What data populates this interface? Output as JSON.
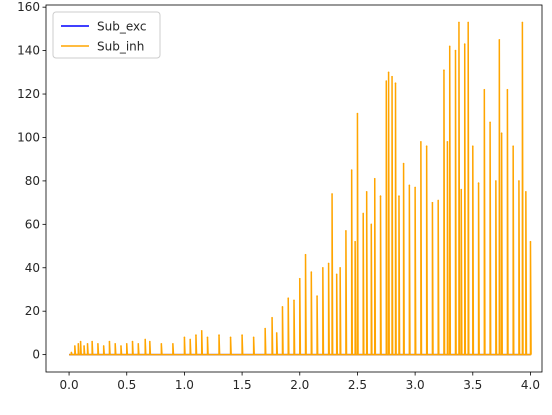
{
  "chart_data": {
    "type": "line",
    "title": "",
    "xlabel": "",
    "ylabel": "",
    "xlim": [
      -0.2,
      4.1
    ],
    "ylim": [
      -8,
      161
    ],
    "x_ticks": [
      0.0,
      0.5,
      1.0,
      1.5,
      2.0,
      2.5,
      3.0,
      3.5,
      4.0
    ],
    "x_tick_labels": [
      "0.0",
      "0.5",
      "1.0",
      "1.5",
      "2.0",
      "2.5",
      "3.0",
      "3.5",
      "4.0"
    ],
    "y_ticks": [
      0,
      20,
      40,
      60,
      80,
      100,
      120,
      140,
      160
    ],
    "y_tick_labels": [
      "0",
      "20",
      "40",
      "60",
      "80",
      "100",
      "120",
      "140",
      "160"
    ],
    "grid": false,
    "legend_position": "top-left",
    "series": [
      {
        "name": "Sub_exc",
        "color": "#0000ff",
        "x": [
          0.0,
          0.5,
          1.0,
          1.5,
          2.0,
          2.5,
          3.0,
          3.5,
          4.0
        ],
        "y": [
          0,
          0,
          0,
          0,
          0,
          0,
          0,
          0,
          0
        ]
      },
      {
        "name": "Sub_inh",
        "color": "#ffa500",
        "x": [
          0.02,
          0.05,
          0.08,
          0.1,
          0.13,
          0.16,
          0.2,
          0.25,
          0.3,
          0.35,
          0.4,
          0.45,
          0.5,
          0.55,
          0.6,
          0.66,
          0.7,
          0.8,
          0.9,
          1.0,
          1.05,
          1.1,
          1.15,
          1.2,
          1.3,
          1.4,
          1.5,
          1.6,
          1.7,
          1.76,
          1.8,
          1.85,
          1.9,
          1.95,
          2.0,
          2.05,
          2.1,
          2.15,
          2.2,
          2.25,
          2.28,
          2.32,
          2.35,
          2.4,
          2.45,
          2.48,
          2.5,
          2.55,
          2.58,
          2.62,
          2.65,
          2.7,
          2.75,
          2.77,
          2.8,
          2.83,
          2.86,
          2.9,
          2.95,
          3.0,
          3.05,
          3.1,
          3.15,
          3.2,
          3.25,
          3.28,
          3.3,
          3.35,
          3.38,
          3.4,
          3.43,
          3.46,
          3.5,
          3.55,
          3.6,
          3.65,
          3.7,
          3.73,
          3.75,
          3.8,
          3.85,
          3.9,
          3.93,
          3.96,
          4.0
        ],
        "y": [
          1,
          4,
          5,
          6,
          4,
          5,
          6,
          5,
          4,
          6,
          5,
          4,
          5,
          6,
          5,
          7,
          6,
          5,
          5,
          8,
          7,
          9,
          11,
          8,
          9,
          8,
          9,
          8,
          12,
          17,
          10,
          22,
          26,
          25,
          35,
          46,
          38,
          27,
          40,
          42,
          74,
          37,
          40,
          57,
          85,
          52,
          111,
          65,
          75,
          60,
          81,
          73,
          126,
          130,
          128,
          125,
          73,
          88,
          78,
          77,
          98,
          96,
          70,
          71,
          131,
          98,
          142,
          140,
          153,
          76,
          143,
          153,
          96,
          79,
          122,
          107,
          80,
          145,
          102,
          122,
          96,
          80,
          153,
          75,
          52
        ]
      }
    ]
  }
}
